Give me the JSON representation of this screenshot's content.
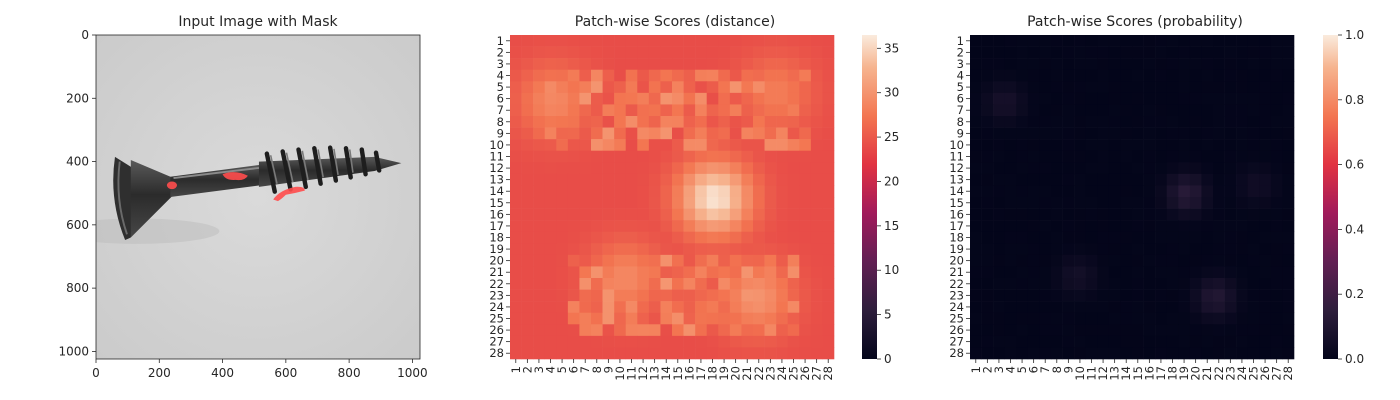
{
  "chart_data": [
    {
      "type": "image",
      "title": "Input Image with Mask",
      "xlim": [
        0,
        1024
      ],
      "ylim": [
        1024,
        0
      ],
      "xticks": [
        0,
        200,
        400,
        600,
        800,
        1000
      ],
      "yticks": [
        0,
        200,
        400,
        600,
        800,
        1000
      ],
      "colors": {
        "mask": "#ff4d4d",
        "screw": "#3a3a3a",
        "background": "#d4d4d4"
      }
    },
    {
      "type": "heatmap",
      "title": "Patch-wise Scores (distance)",
      "rows": 28,
      "cols": 28,
      "row_labels": [
        "1",
        "2",
        "3",
        "4",
        "5",
        "6",
        "7",
        "8",
        "9",
        "10",
        "11",
        "12",
        "13",
        "14",
        "15",
        "16",
        "17",
        "18",
        "19",
        "20",
        "21",
        "22",
        "23",
        "24",
        "25",
        "26",
        "27",
        "28"
      ],
      "col_labels": [
        "1",
        "2",
        "3",
        "4",
        "5",
        "6",
        "7",
        "8",
        "9",
        "10",
        "11",
        "12",
        "13",
        "14",
        "15",
        "16",
        "17",
        "18",
        "19",
        "20",
        "21",
        "22",
        "23",
        "24",
        "25",
        "26",
        "27",
        "28"
      ],
      "colorbar": {
        "min": 0,
        "max": 36.5,
        "ticks": [
          0,
          5,
          10,
          15,
          20,
          25,
          30,
          35
        ]
      },
      "hotspots": [
        {
          "row": 14.6,
          "col": 18.2,
          "value": 36
        },
        {
          "row": 6.2,
          "col": 4.3,
          "value": 29
        },
        {
          "row": 21.5,
          "col": 10.5,
          "value": 29
        },
        {
          "row": 23.2,
          "col": 21.8,
          "value": 30
        },
        {
          "row": 5.5,
          "col": 23.5,
          "value": 28
        }
      ]
    },
    {
      "type": "heatmap",
      "title": "Patch-wise Scores (probability)",
      "rows": 28,
      "cols": 28,
      "row_labels": [
        "1",
        "2",
        "3",
        "4",
        "5",
        "6",
        "7",
        "8",
        "9",
        "10",
        "11",
        "12",
        "13",
        "14",
        "15",
        "16",
        "17",
        "18",
        "19",
        "20",
        "21",
        "22",
        "23",
        "24",
        "25",
        "26",
        "27",
        "28"
      ],
      "col_labels": [
        "1",
        "2",
        "3",
        "4",
        "5",
        "6",
        "7",
        "8",
        "9",
        "10",
        "11",
        "12",
        "13",
        "14",
        "15",
        "16",
        "17",
        "18",
        "19",
        "20",
        "21",
        "22",
        "23",
        "24",
        "25",
        "26",
        "27",
        "28"
      ],
      "colorbar": {
        "min": 0,
        "max": 1,
        "ticks": [
          "0.0",
          "0.2",
          "0.4",
          "0.6",
          "0.8",
          "1.0"
        ]
      },
      "hotspots": [
        {
          "row": 14.2,
          "col": 19.2,
          "value": 0.13
        },
        {
          "row": 23.2,
          "col": 21.7,
          "value": 0.11
        },
        {
          "row": 6.3,
          "col": 3.5,
          "value": 0.07
        },
        {
          "row": 21.3,
          "col": 9.8,
          "value": 0.06
        },
        {
          "row": 13.5,
          "col": 25.3,
          "value": 0.05
        }
      ]
    }
  ]
}
